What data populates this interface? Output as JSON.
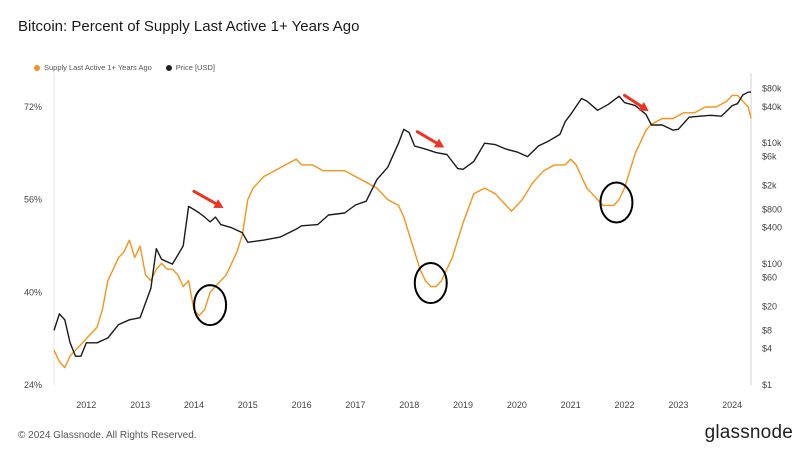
{
  "title": "Bitcoin: Percent of Supply Last Active 1+ Years Ago",
  "footer": "© 2024 Glassnode. All Rights Reserved.",
  "brand": "glassnode",
  "chart_data": {
    "type": "line",
    "legend_placement": "top-left",
    "grid": false,
    "x_ticks": [
      "2012",
      "2013",
      "2014",
      "2015",
      "2016",
      "2017",
      "2018",
      "2019",
      "2020",
      "2021",
      "2022",
      "2023",
      "2024"
    ],
    "x_range": [
      2011.4,
      2024.35
    ],
    "y_left": {
      "ticks": [
        "72%",
        "56%",
        "40%",
        "24%"
      ],
      "tick_values": [
        72,
        56,
        40,
        24
      ],
      "range": [
        24,
        77
      ]
    },
    "y_right": {
      "scale": "log",
      "ticks": [
        "$80k",
        "$40k",
        "$10k",
        "$6k",
        "$2k",
        "$800",
        "$400",
        "$100",
        "$60",
        "$20",
        "$8",
        "$4",
        "$1"
      ],
      "tick_values": [
        80000,
        40000,
        10000,
        6000,
        2000,
        800,
        400,
        100,
        60,
        20,
        8,
        4,
        1
      ],
      "range": [
        1,
        120000
      ]
    },
    "colors": {
      "supply": "#f7931a",
      "price": "#1a1a1a",
      "arrow": "#ee3322",
      "circle": "#000000"
    },
    "series": [
      {
        "name": "Supply Last Active 1+ Years Ago",
        "axis": "left",
        "x": [
          2011.4,
          2011.5,
          2011.6,
          2011.7,
          2011.8,
          2011.9,
          2012.0,
          2012.1,
          2012.2,
          2012.3,
          2012.4,
          2012.5,
          2012.6,
          2012.7,
          2012.8,
          2012.9,
          2013.0,
          2013.1,
          2013.2,
          2013.3,
          2013.4,
          2013.5,
          2013.6,
          2013.7,
          2013.8,
          2013.9,
          2014.0,
          2014.1,
          2014.2,
          2014.3,
          2014.4,
          2014.5,
          2014.6,
          2014.7,
          2014.8,
          2014.9,
          2015.0,
          2015.1,
          2015.2,
          2015.3,
          2015.5,
          2015.7,
          2015.9,
          2016.0,
          2016.2,
          2016.4,
          2016.6,
          2016.8,
          2017.0,
          2017.2,
          2017.4,
          2017.6,
          2017.8,
          2017.9,
          2018.0,
          2018.1,
          2018.2,
          2018.3,
          2018.4,
          2018.5,
          2018.6,
          2018.7,
          2018.8,
          2018.9,
          2019.0,
          2019.2,
          2019.4,
          2019.6,
          2019.8,
          2019.9,
          2020.0,
          2020.1,
          2020.3,
          2020.5,
          2020.7,
          2020.9,
          2021.0,
          2021.1,
          2021.2,
          2021.3,
          2021.4,
          2021.5,
          2021.6,
          2021.7,
          2021.8,
          2021.9,
          2022.0,
          2022.1,
          2022.2,
          2022.3,
          2022.4,
          2022.5,
          2022.7,
          2022.9,
          2023.1,
          2023.3,
          2023.5,
          2023.7,
          2023.9,
          2024.0,
          2024.1,
          2024.2,
          2024.3,
          2024.35
        ],
        "values": [
          30,
          28,
          27,
          29,
          30,
          31,
          32,
          33,
          34,
          37,
          42,
          44,
          46,
          47,
          49,
          46,
          48,
          43,
          42,
          44,
          45,
          44,
          44,
          43,
          41,
          42,
          37,
          36,
          37,
          40,
          41,
          42,
          43,
          45,
          47,
          50,
          56,
          58,
          59,
          60,
          61,
          62,
          63,
          62,
          62,
          61,
          61,
          61,
          60,
          59,
          58,
          56,
          55,
          53,
          50,
          47,
          44,
          42,
          41,
          41,
          42,
          44,
          46,
          49,
          52,
          57,
          58,
          57,
          55,
          54,
          55,
          56,
          59,
          61,
          62,
          62,
          63,
          62,
          60,
          58,
          57,
          56,
          55,
          55,
          55,
          56,
          58,
          61,
          64,
          66,
          68,
          69,
          70,
          70,
          71,
          71,
          72,
          72,
          73,
          74,
          74,
          73,
          72,
          70
        ]
      },
      {
        "name": "Price [USD]",
        "axis": "right",
        "x": [
          2011.4,
          2011.5,
          2011.6,
          2011.7,
          2011.8,
          2011.9,
          2012.0,
          2012.2,
          2012.4,
          2012.6,
          2012.8,
          2013.0,
          2013.2,
          2013.3,
          2013.4,
          2013.6,
          2013.8,
          2013.9,
          2014.0,
          2014.1,
          2014.2,
          2014.3,
          2014.4,
          2014.5,
          2014.7,
          2014.9,
          2015.0,
          2015.3,
          2015.6,
          2015.9,
          2016.0,
          2016.3,
          2016.5,
          2016.8,
          2017.0,
          2017.2,
          2017.4,
          2017.6,
          2017.8,
          2017.9,
          2018.0,
          2018.1,
          2018.3,
          2018.5,
          2018.7,
          2018.9,
          2019.0,
          2019.2,
          2019.4,
          2019.6,
          2019.8,
          2020.0,
          2020.2,
          2020.4,
          2020.6,
          2020.8,
          2020.9,
          2021.0,
          2021.2,
          2021.3,
          2021.5,
          2021.7,
          2021.9,
          2022.0,
          2022.2,
          2022.4,
          2022.5,
          2022.7,
          2022.9,
          2023.0,
          2023.2,
          2023.4,
          2023.6,
          2023.8,
          2024.0,
          2024.1,
          2024.2,
          2024.3,
          2024.35
        ],
        "values": [
          8,
          15,
          12,
          5,
          3,
          3,
          5,
          5,
          6,
          10,
          12,
          13,
          40,
          180,
          120,
          100,
          200,
          900,
          800,
          700,
          600,
          500,
          600,
          450,
          400,
          330,
          230,
          250,
          280,
          380,
          430,
          450,
          650,
          700,
          950,
          1100,
          2500,
          4000,
          10000,
          17000,
          15000,
          9000,
          8000,
          7000,
          6500,
          3800,
          3700,
          5000,
          10000,
          9500,
          8000,
          7200,
          6000,
          9000,
          11000,
          14000,
          23000,
          30000,
          55000,
          50000,
          35000,
          44000,
          60000,
          47000,
          42000,
          30000,
          20000,
          20000,
          16500,
          17000,
          27000,
          28000,
          29000,
          28000,
          42000,
          45000,
          63000,
          70000,
          70000
        ]
      }
    ],
    "annotations": {
      "arrows": [
        {
          "x1": 2014.0,
          "y1": 1600,
          "x2": 2014.55,
          "y2": 850
        },
        {
          "x1": 2018.15,
          "y1": 15500,
          "x2": 2018.65,
          "y2": 8500
        },
        {
          "x1": 2022.0,
          "y1": 62000,
          "x2": 2022.45,
          "y2": 34000
        }
      ],
      "circles": [
        {
          "x": 2014.3,
          "y_pct": 37.8
        },
        {
          "x": 2018.4,
          "y_pct": 41.6
        },
        {
          "x": 2021.85,
          "y_pct": 55.5
        }
      ]
    }
  }
}
